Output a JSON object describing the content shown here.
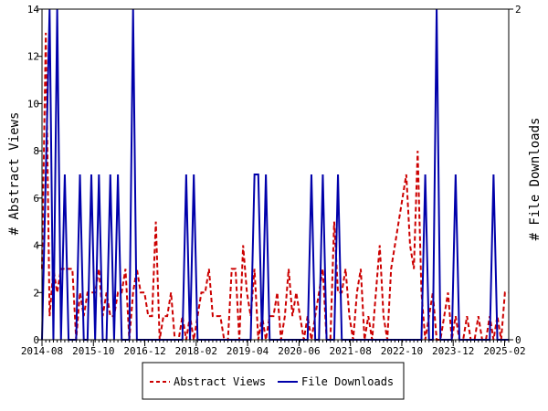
{
  "chart_data": {
    "type": "line",
    "x_tick_labels": [
      "2014-08",
      "2015-10",
      "2016-12",
      "2018-02",
      "2019-04",
      "2020-06",
      "2021-08",
      "2022-10",
      "2023-12",
      "2025-02"
    ],
    "ylabel_left": "# Abstract Views",
    "ylabel_right": "# File Downloads",
    "ylim_left": [
      0,
      14
    ],
    "ylim_right": [
      0,
      2
    ],
    "yticks_left": [
      "0",
      "2",
      "4",
      "6",
      "8",
      "10",
      "12",
      "14"
    ],
    "yticks_right": [
      "0",
      "2"
    ],
    "legend_position": "bottom",
    "grid": false,
    "series": [
      {
        "name": "Abstract Views",
        "axis": "left",
        "color": "#cc0000",
        "style": "dashed",
        "values": [
          3,
          13,
          1,
          3,
          2,
          3,
          3,
          3,
          3,
          0,
          2,
          1,
          2,
          2,
          2,
          3,
          1,
          2,
          1,
          1,
          2,
          2,
          3,
          0,
          2,
          3,
          2,
          2,
          1,
          1,
          5,
          0,
          1,
          1,
          2,
          0,
          0,
          1,
          0,
          1,
          0,
          1,
          2,
          2,
          3,
          1,
          1,
          1,
          0,
          0,
          3,
          3,
          0,
          4,
          2,
          1,
          3,
          0,
          1,
          0,
          1,
          1,
          2,
          0,
          1,
          3,
          1,
          2,
          1,
          0,
          1,
          0,
          1,
          2,
          3,
          0,
          0,
          5,
          2,
          2,
          3,
          1,
          0,
          2,
          3,
          0,
          1,
          0,
          2,
          4,
          1,
          0,
          3,
          4,
          5,
          6,
          7,
          4,
          3,
          8,
          2,
          0,
          1,
          2,
          0,
          0,
          1,
          2,
          0,
          1,
          0,
          0,
          1,
          0,
          0,
          1,
          0,
          0,
          1,
          0,
          1,
          0,
          2,
          2
        ]
      },
      {
        "name": "File Downloads",
        "axis": "right",
        "color": "#0000aa",
        "style": "solid",
        "values": [
          0,
          1,
          2,
          0,
          2,
          0,
          1,
          0,
          0,
          0,
          1,
          0,
          0,
          1,
          0,
          1,
          0,
          0,
          1,
          0,
          1,
          0,
          0,
          0,
          2,
          0,
          0,
          0,
          0,
          0,
          0,
          0,
          0,
          0,
          0,
          0,
          0,
          0,
          1,
          0,
          1,
          0,
          0,
          0,
          0,
          0,
          0,
          0,
          0,
          0,
          0,
          0,
          0,
          0,
          0,
          0,
          1,
          1,
          0,
          1,
          0,
          0,
          0,
          0,
          0,
          0,
          0,
          0,
          0,
          0,
          0,
          1,
          0,
          0,
          1,
          0,
          0,
          0,
          1,
          0,
          0,
          0,
          0,
          0,
          0,
          0,
          0,
          0,
          0,
          0,
          0,
          0,
          0,
          0,
          0,
          0,
          0,
          0,
          0,
          0,
          0,
          1,
          0,
          0,
          2,
          0,
          0,
          0,
          0,
          1,
          0,
          0,
          0,
          0,
          0,
          0,
          0,
          0,
          0,
          1,
          0,
          0,
          0,
          0
        ]
      }
    ]
  }
}
